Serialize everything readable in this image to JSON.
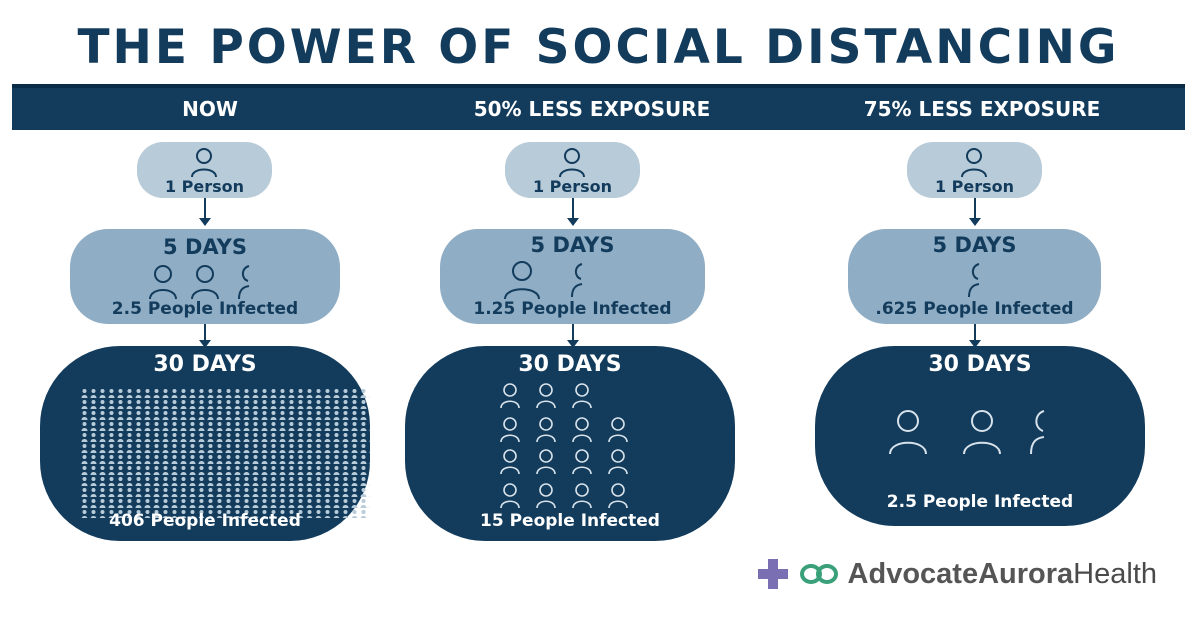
{
  "title": "THE POWER OF SOCIAL DISTANCING",
  "columns": [
    {
      "header": "NOW",
      "start_label": "1 Person",
      "mid_days": "5 DAYS",
      "mid_label": "2.5 People Infected",
      "end_days": "30 DAYS",
      "end_label": "406 People Infected"
    },
    {
      "header": "50% LESS EXPOSURE",
      "start_label": "1 Person",
      "mid_days": "5 DAYS",
      "mid_label": "1.25 People Infected",
      "end_days": "30 DAYS",
      "end_label": "15 People Infected"
    },
    {
      "header": "75% LESS EXPOSURE",
      "start_label": "1 Person",
      "mid_days": "5 DAYS",
      "mid_label": ".625 People Infected",
      "end_days": "30 DAYS",
      "end_label": "2.5 People Infected"
    }
  ],
  "logo": {
    "text_part1": "Advocate",
    "text_part2": "Aurora",
    "text_part3": "Health",
    "icons": [
      "plus-cross-icon",
      "infinity-link-icon"
    ]
  },
  "colors": {
    "navy": "#123b5c",
    "pale_blue": "#b8cbd9",
    "mid_blue": "#8fadc4",
    "logo_purple": "#7b6fb3",
    "logo_green": "#3aa079"
  }
}
